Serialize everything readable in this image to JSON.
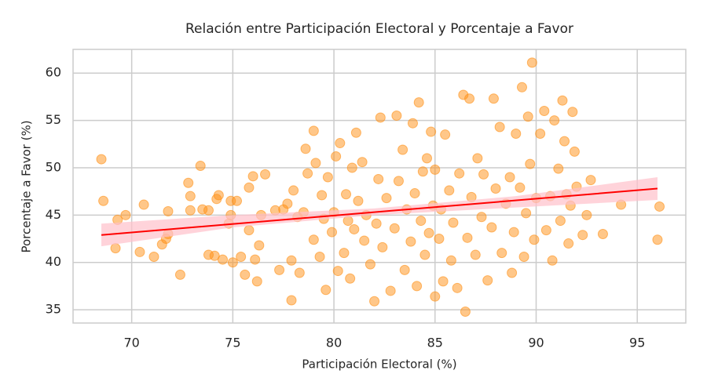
{
  "chart_data": {
    "type": "scatter",
    "title": "Relación entre Participación Electoral y Porcentaje a Favor",
    "x_label": "Participación Electoral (%)",
    "y_label": "Porcentaje a Favor (%)",
    "xlim": [
      67.1,
      97.4
    ],
    "ylim": [
      33.6,
      62.5
    ],
    "xticks": [
      70,
      75,
      80,
      85,
      90,
      95
    ],
    "yticks": [
      35,
      40,
      45,
      50,
      55,
      60
    ],
    "grid": true,
    "series": [
      {
        "color": "#ff9014",
        "x": [
          68.5,
          68.6,
          69.2,
          69.3,
          69.7,
          70.4,
          70.6,
          71.1,
          71.5,
          71.7,
          71.8,
          71.8,
          72.4,
          72.8,
          72.9,
          72.9,
          73.4,
          73.5,
          73.8,
          73.8,
          74.1,
          74.2,
          74.3,
          74.5,
          74.8,
          74.9,
          74.9,
          75.0,
          75.2,
          75.4,
          75.6,
          75.8,
          75.8,
          76.0,
          76.1,
          76.2,
          76.3,
          76.4,
          76.6,
          77.1,
          77.3,
          77.5,
          77.7,
          77.9,
          77.9,
          78.0,
          78.2,
          78.3,
          78.5,
          78.6,
          78.7,
          79.0,
          79.0,
          79.1,
          79.3,
          79.4,
          79.5,
          79.6,
          79.7,
          79.9,
          80.0,
          80.1,
          80.2,
          80.3,
          80.5,
          80.6,
          80.7,
          80.8,
          80.9,
          81.0,
          81.1,
          81.2,
          81.4,
          81.5,
          81.6,
          81.8,
          82.0,
          82.1,
          82.2,
          82.3,
          82.4,
          82.6,
          82.8,
          83.0,
          83.1,
          83.2,
          83.4,
          83.5,
          83.6,
          83.8,
          83.9,
          84.0,
          84.1,
          84.2,
          84.3,
          84.4,
          84.5,
          84.6,
          84.7,
          84.8,
          84.9,
          85.0,
          85.0,
          85.2,
          85.3,
          85.4,
          85.5,
          85.7,
          85.8,
          85.9,
          86.1,
          86.2,
          86.4,
          86.5,
          86.6,
          86.7,
          86.8,
          87.0,
          87.1,
          87.3,
          87.4,
          87.6,
          87.8,
          87.9,
          88.0,
          88.2,
          88.3,
          88.5,
          88.7,
          88.8,
          88.9,
          89.0,
          89.2,
          89.3,
          89.4,
          89.5,
          89.6,
          89.7,
          89.8,
          89.9,
          90.0,
          90.2,
          90.4,
          90.5,
          90.7,
          90.8,
          90.9,
          91.1,
          91.2,
          91.3,
          91.4,
          91.5,
          91.6,
          91.7,
          91.8,
          91.9,
          92.0,
          92.3,
          92.5,
          92.7,
          93.3,
          94.2,
          96.0,
          96.1
        ],
        "values": [
          50.9,
          46.5,
          41.5,
          44.5,
          45.0,
          41.1,
          46.1,
          40.6,
          41.9,
          42.5,
          45.4,
          43.0,
          38.7,
          48.4,
          47.0,
          45.5,
          50.2,
          45.6,
          45.5,
          40.8,
          40.7,
          46.7,
          47.1,
          40.3,
          44.1,
          45.0,
          46.5,
          40.0,
          46.5,
          40.6,
          38.7,
          47.9,
          43.4,
          49.1,
          40.3,
          38.0,
          41.8,
          45.0,
          49.3,
          45.5,
          39.2,
          45.6,
          46.2,
          36.0,
          40.2,
          47.6,
          44.8,
          38.9,
          45.3,
          52.0,
          49.4,
          42.4,
          53.9,
          50.5,
          40.6,
          47.1,
          44.6,
          37.1,
          49.0,
          43.2,
          45.3,
          51.2,
          39.1,
          52.6,
          41.0,
          47.2,
          44.4,
          38.3,
          50.0,
          43.5,
          53.7,
          46.5,
          50.6,
          42.3,
          45.0,
          39.8,
          35.9,
          44.1,
          48.8,
          55.3,
          41.6,
          46.8,
          37.0,
          43.6,
          55.5,
          48.6,
          51.9,
          39.2,
          45.6,
          42.2,
          54.7,
          47.3,
          37.5,
          56.9,
          44.4,
          49.6,
          40.8,
          51.0,
          43.1,
          53.8,
          46.0,
          36.4,
          49.8,
          42.5,
          45.6,
          38.0,
          53.5,
          47.6,
          40.2,
          44.2,
          37.3,
          49.4,
          57.7,
          34.8,
          42.6,
          57.3,
          46.9,
          40.8,
          51.0,
          44.8,
          49.3,
          38.1,
          43.7,
          57.3,
          47.8,
          54.3,
          41.0,
          46.2,
          49.0,
          38.9,
          43.2,
          53.6,
          47.9,
          58.5,
          40.6,
          45.2,
          55.4,
          50.4,
          61.1,
          42.4,
          46.8,
          53.6,
          56.0,
          43.4,
          47.0,
          40.2,
          55.0,
          49.9,
          44.4,
          57.1,
          52.8,
          47.2,
          42.0,
          46.0,
          55.9,
          51.7,
          48.0,
          42.9,
          45.0,
          48.7,
          43.0,
          46.1,
          42.4,
          45.9
        ]
      }
    ],
    "regression": {
      "color": "#ff0000",
      "x": [
        68.5,
        96.0
      ],
      "values": [
        42.9,
        47.8
      ]
    },
    "confidence_band": {
      "color": "#ffc0cb",
      "x": [
        68.5,
        75,
        82,
        89,
        96
      ],
      "lower": [
        41.7,
        43.7,
        45.0,
        45.8,
        46.6
      ],
      "upper": [
        44.1,
        45.0,
        45.7,
        47.0,
        49.0
      ]
    }
  }
}
